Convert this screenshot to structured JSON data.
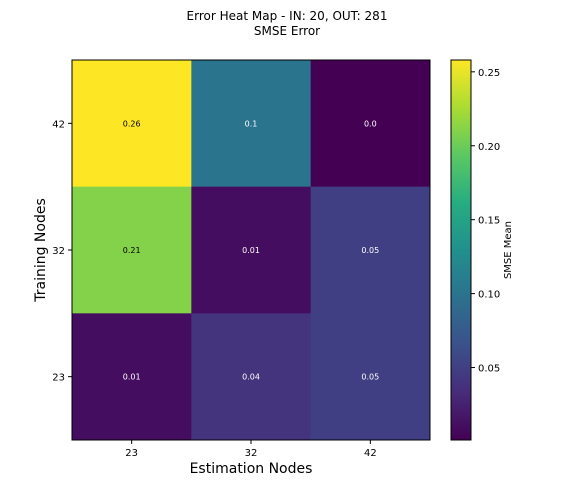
{
  "chart_data": {
    "type": "heatmap",
    "title": "Error Heat Map - IN: 20, OUT: 281",
    "subtitle": "SMSE Error",
    "xlabel": "Estimation Nodes",
    "ylabel": "Training Nodes",
    "x_categories": [
      "23",
      "32",
      "42"
    ],
    "y_categories": [
      "42",
      "32",
      "23"
    ],
    "values": [
      [
        0.26,
        0.1,
        0.0
      ],
      [
        0.21,
        0.01,
        0.05
      ],
      [
        0.01,
        0.04,
        0.05
      ]
    ],
    "cell_labels": [
      [
        "0.26",
        "0.1",
        "0.0"
      ],
      [
        "0.21",
        "0.01",
        "0.05"
      ],
      [
        "0.01",
        "0.04",
        "0.05"
      ]
    ],
    "colormap": "viridis",
    "colorbar": {
      "label": "SMSE Mean",
      "range": [
        0.001,
        0.258
      ],
      "ticks": [
        0.05,
        0.1,
        0.15,
        0.2,
        0.25
      ],
      "tick_labels": [
        "0.05",
        "0.10",
        "0.15",
        "0.20",
        "0.25"
      ]
    }
  }
}
